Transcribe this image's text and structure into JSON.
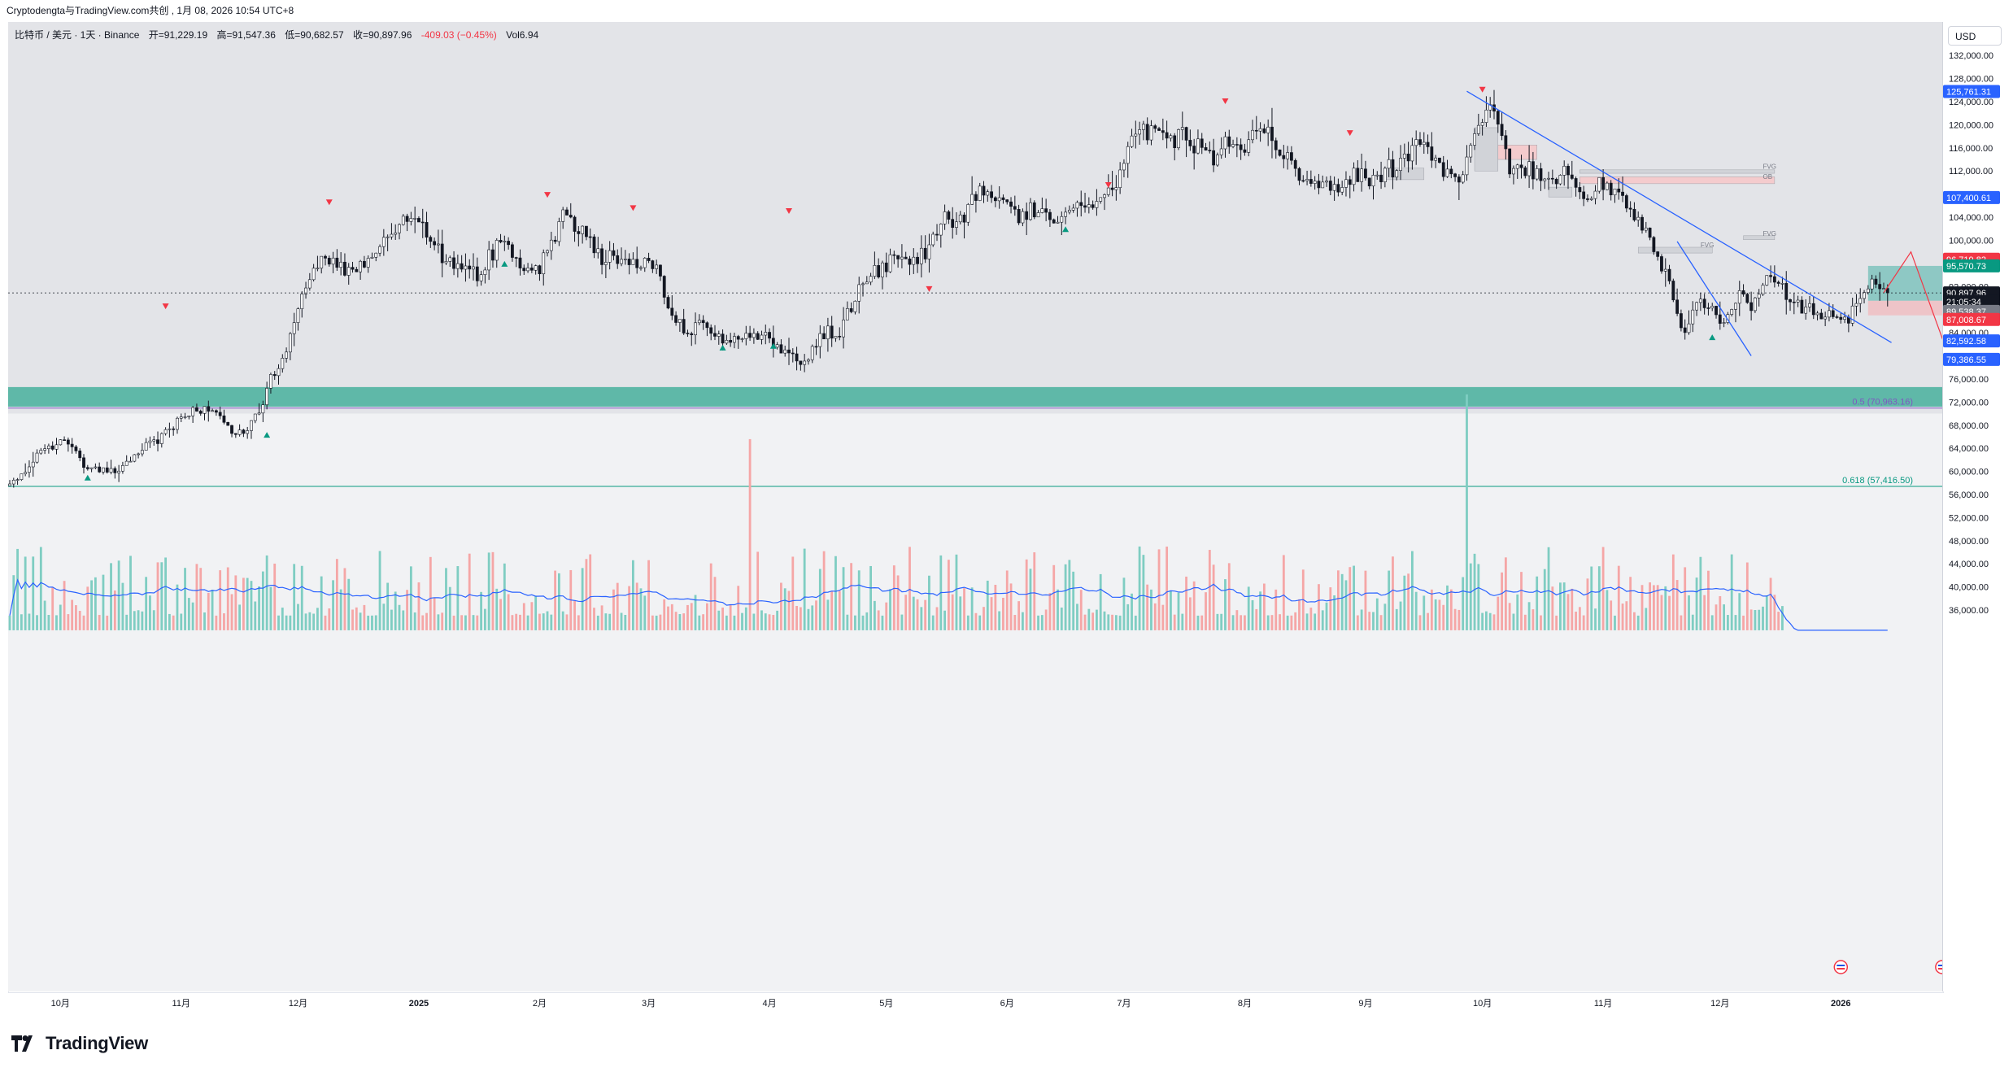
{
  "header": {
    "credit": "Cryptodengta与TradingView.com共创 , 1月 08, 2026 10:54 UTC+8"
  },
  "legend": {
    "symbol": "比特币 / 美元 · 1天 · Binance",
    "open": "开=91,229.19",
    "high": "高=91,547.36",
    "low": "低=90,682.57",
    "close": "收=90,897.96",
    "change": "-409.03 (−0.45%)",
    "volume": "Vol6.94"
  },
  "currency": "USD",
  "logo_text": "TradingView",
  "colors": {
    "up": "#26a69a",
    "down": "#ef5350",
    "zone": "#5fb8a8",
    "trendline": "#2962ff",
    "projection": "#f23645",
    "ma": "#2962ff"
  },
  "chart_data": {
    "type": "candlestick",
    "title": "",
    "y_scale": "linear",
    "ylim": [
      32000,
      137000
    ],
    "price_ticks": [
      132000,
      128000,
      124000,
      120000,
      116000,
      112000,
      108000,
      104000,
      100000,
      96000,
      92000,
      88000,
      84000,
      80000,
      76000,
      72000,
      68000,
      64000,
      60000,
      56000,
      52000,
      48000,
      44000,
      40000,
      36000
    ],
    "price_tick_labels": [
      "132,000.00",
      "128,000.00",
      "124,000.00",
      "120,000.00",
      "116,000.00",
      "112,000.00",
      "108,000.00",
      "104,000.00",
      "100,000.00",
      "96,000.00",
      "92,000.00",
      "88,000.00",
      "84,000.00",
      "80,000.00",
      "76,000.00",
      "72,000.00",
      "68,000.00",
      "64,000.00",
      "60,000.00",
      "56,000.00",
      "52,000.00",
      "48,000.00",
      "44,000.00",
      "40,000.00",
      "36,000.00"
    ],
    "price_tags": [
      {
        "label": "125,761.31",
        "value": 125761.31,
        "color": "#2962ff"
      },
      {
        "label": "107,400.61",
        "value": 107400.61,
        "color": "#2962ff"
      },
      {
        "label": "96,719.82",
        "value": 96719.82,
        "color": "#f23645"
      },
      {
        "label": "95,570.73",
        "value": 95570.73,
        "color": "#089981"
      },
      {
        "label": "90,897.96",
        "value": 90897.96,
        "color": "#131722"
      },
      {
        "label": "21:05:34",
        "value": 89400,
        "color": "#131722"
      },
      {
        "label": "89,538.37",
        "value": 87700,
        "color": "#787b86"
      },
      {
        "label": "87,008.67",
        "value": 86300,
        "color": "#f23645"
      },
      {
        "label": "82,592.58",
        "value": 82592.58,
        "color": "#2962ff"
      },
      {
        "label": "79,386.55",
        "value": 79386.55,
        "color": "#2962ff"
      }
    ],
    "time_labels": [
      "10月",
      "11月",
      "12月",
      "2025",
      "2月",
      "3月",
      "4月",
      "5月",
      "6月",
      "7月",
      "8月",
      "9月",
      "10月",
      "11月",
      "12月",
      "2026",
      "2月",
      "3月"
    ],
    "time_label_days": [
      13,
      44,
      74,
      105,
      136,
      164,
      195,
      225,
      256,
      286,
      317,
      348,
      378,
      409,
      439,
      470,
      501,
      529
    ],
    "fib_levels": [
      {
        "label": "0.5 (70,963.16)",
        "value": 70963.16
      },
      {
        "label": "0.618 (57,416.50)",
        "value": 57416.5
      }
    ],
    "support_zone": {
      "from": 71200,
      "to": 74600
    },
    "anchors": [
      [
        0,
        57500
      ],
      [
        8,
        63500
      ],
      [
        14,
        65800
      ],
      [
        20,
        60500
      ],
      [
        28,
        60000
      ],
      [
        33,
        63500
      ],
      [
        40,
        66800
      ],
      [
        47,
        70500
      ],
      [
        53,
        70800
      ],
      [
        57,
        66500
      ],
      [
        62,
        67500
      ],
      [
        66,
        74500
      ],
      [
        71,
        81000
      ],
      [
        75,
        91500
      ],
      [
        80,
        97000
      ],
      [
        86,
        94500
      ],
      [
        92,
        96500
      ],
      [
        98,
        101000
      ],
      [
        104,
        105000
      ],
      [
        109,
        98500
      ],
      [
        114,
        95500
      ],
      [
        120,
        93500
      ],
      [
        126,
        99800
      ],
      [
        131,
        96000
      ],
      [
        136,
        94500
      ],
      [
        142,
        104500
      ],
      [
        147,
        101500
      ],
      [
        152,
        97000
      ],
      [
        157,
        97200
      ],
      [
        162,
        95500
      ],
      [
        166,
        95200
      ],
      [
        170,
        86000
      ],
      [
        174,
        84200
      ],
      [
        178,
        86500
      ],
      [
        183,
        82500
      ],
      [
        189,
        83000
      ],
      [
        194,
        84500
      ],
      [
        197,
        82200
      ],
      [
        203,
        78500
      ],
      [
        209,
        83500
      ],
      [
        214,
        85000
      ],
      [
        219,
        93500
      ],
      [
        223,
        94200
      ],
      [
        228,
        97000
      ],
      [
        233,
        96500
      ],
      [
        236,
        99200
      ],
      [
        240,
        103500
      ],
      [
        245,
        104000
      ],
      [
        249,
        109000
      ],
      [
        254,
        106500
      ],
      [
        259,
        104500
      ],
      [
        263,
        105500
      ],
      [
        268,
        103200
      ],
      [
        272,
        105900
      ],
      [
        276,
        106000
      ],
      [
        280,
        108300
      ],
      [
        283,
        107200
      ],
      [
        287,
        117500
      ],
      [
        291,
        118800
      ],
      [
        296,
        119000
      ],
      [
        301,
        117500
      ],
      [
        306,
        115500
      ],
      [
        309,
        114200
      ],
      [
        313,
        116800
      ],
      [
        317,
        116000
      ],
      [
        321,
        120000
      ],
      [
        325,
        116500
      ],
      [
        329,
        113000
      ],
      [
        333,
        109300
      ],
      [
        337,
        110000
      ],
      [
        341,
        108300
      ],
      [
        345,
        112000
      ],
      [
        349,
        109300
      ],
      [
        353,
        112000
      ],
      [
        358,
        114000
      ],
      [
        363,
        117100
      ],
      [
        366,
        115000
      ],
      [
        370,
        110000
      ],
      [
        373,
        112200
      ],
      [
        376,
        118000
      ],
      [
        379,
        123500
      ],
      [
        382,
        121000
      ],
      [
        385,
        113200
      ],
      [
        390,
        112000
      ],
      [
        395,
        111000
      ],
      [
        400,
        112200
      ],
      [
        404,
        106500
      ],
      [
        408,
        110000
      ],
      [
        412,
        108000
      ],
      [
        416,
        104500
      ],
      [
        420,
        101500
      ],
      [
        423,
        96500
      ],
      [
        426,
        93500
      ],
      [
        428,
        86500
      ],
      [
        430,
        84000
      ],
      [
        434,
        89500
      ],
      [
        438,
        87000
      ],
      [
        440,
        84800
      ],
      [
        444,
        91000
      ],
      [
        447,
        89000
      ],
      [
        450,
        92300
      ],
      [
        453,
        93500
      ],
      [
        457,
        90500
      ],
      [
        460,
        88000
      ],
      [
        464,
        87500
      ],
      [
        468,
        87500
      ],
      [
        472,
        87000
      ],
      [
        476,
        91200
      ],
      [
        479,
        93500
      ],
      [
        482,
        90900
      ]
    ],
    "projection_path": [
      [
        481,
        90900
      ],
      [
        488,
        98000
      ],
      [
        501,
        73800
      ]
    ],
    "trendlines": [
      {
        "from": [
          374,
          125800
        ],
        "to": [
          483,
          82300
        ]
      },
      {
        "from": [
          428,
          99800
        ],
        "to": [
          447,
          80000
        ]
      }
    ],
    "position_box": {
      "x_from": 477,
      "x_to": 500,
      "target_top": 95570.73,
      "entry": 89538.37,
      "stop": 87008.67
    },
    "volume_axis_max": 120000
  }
}
